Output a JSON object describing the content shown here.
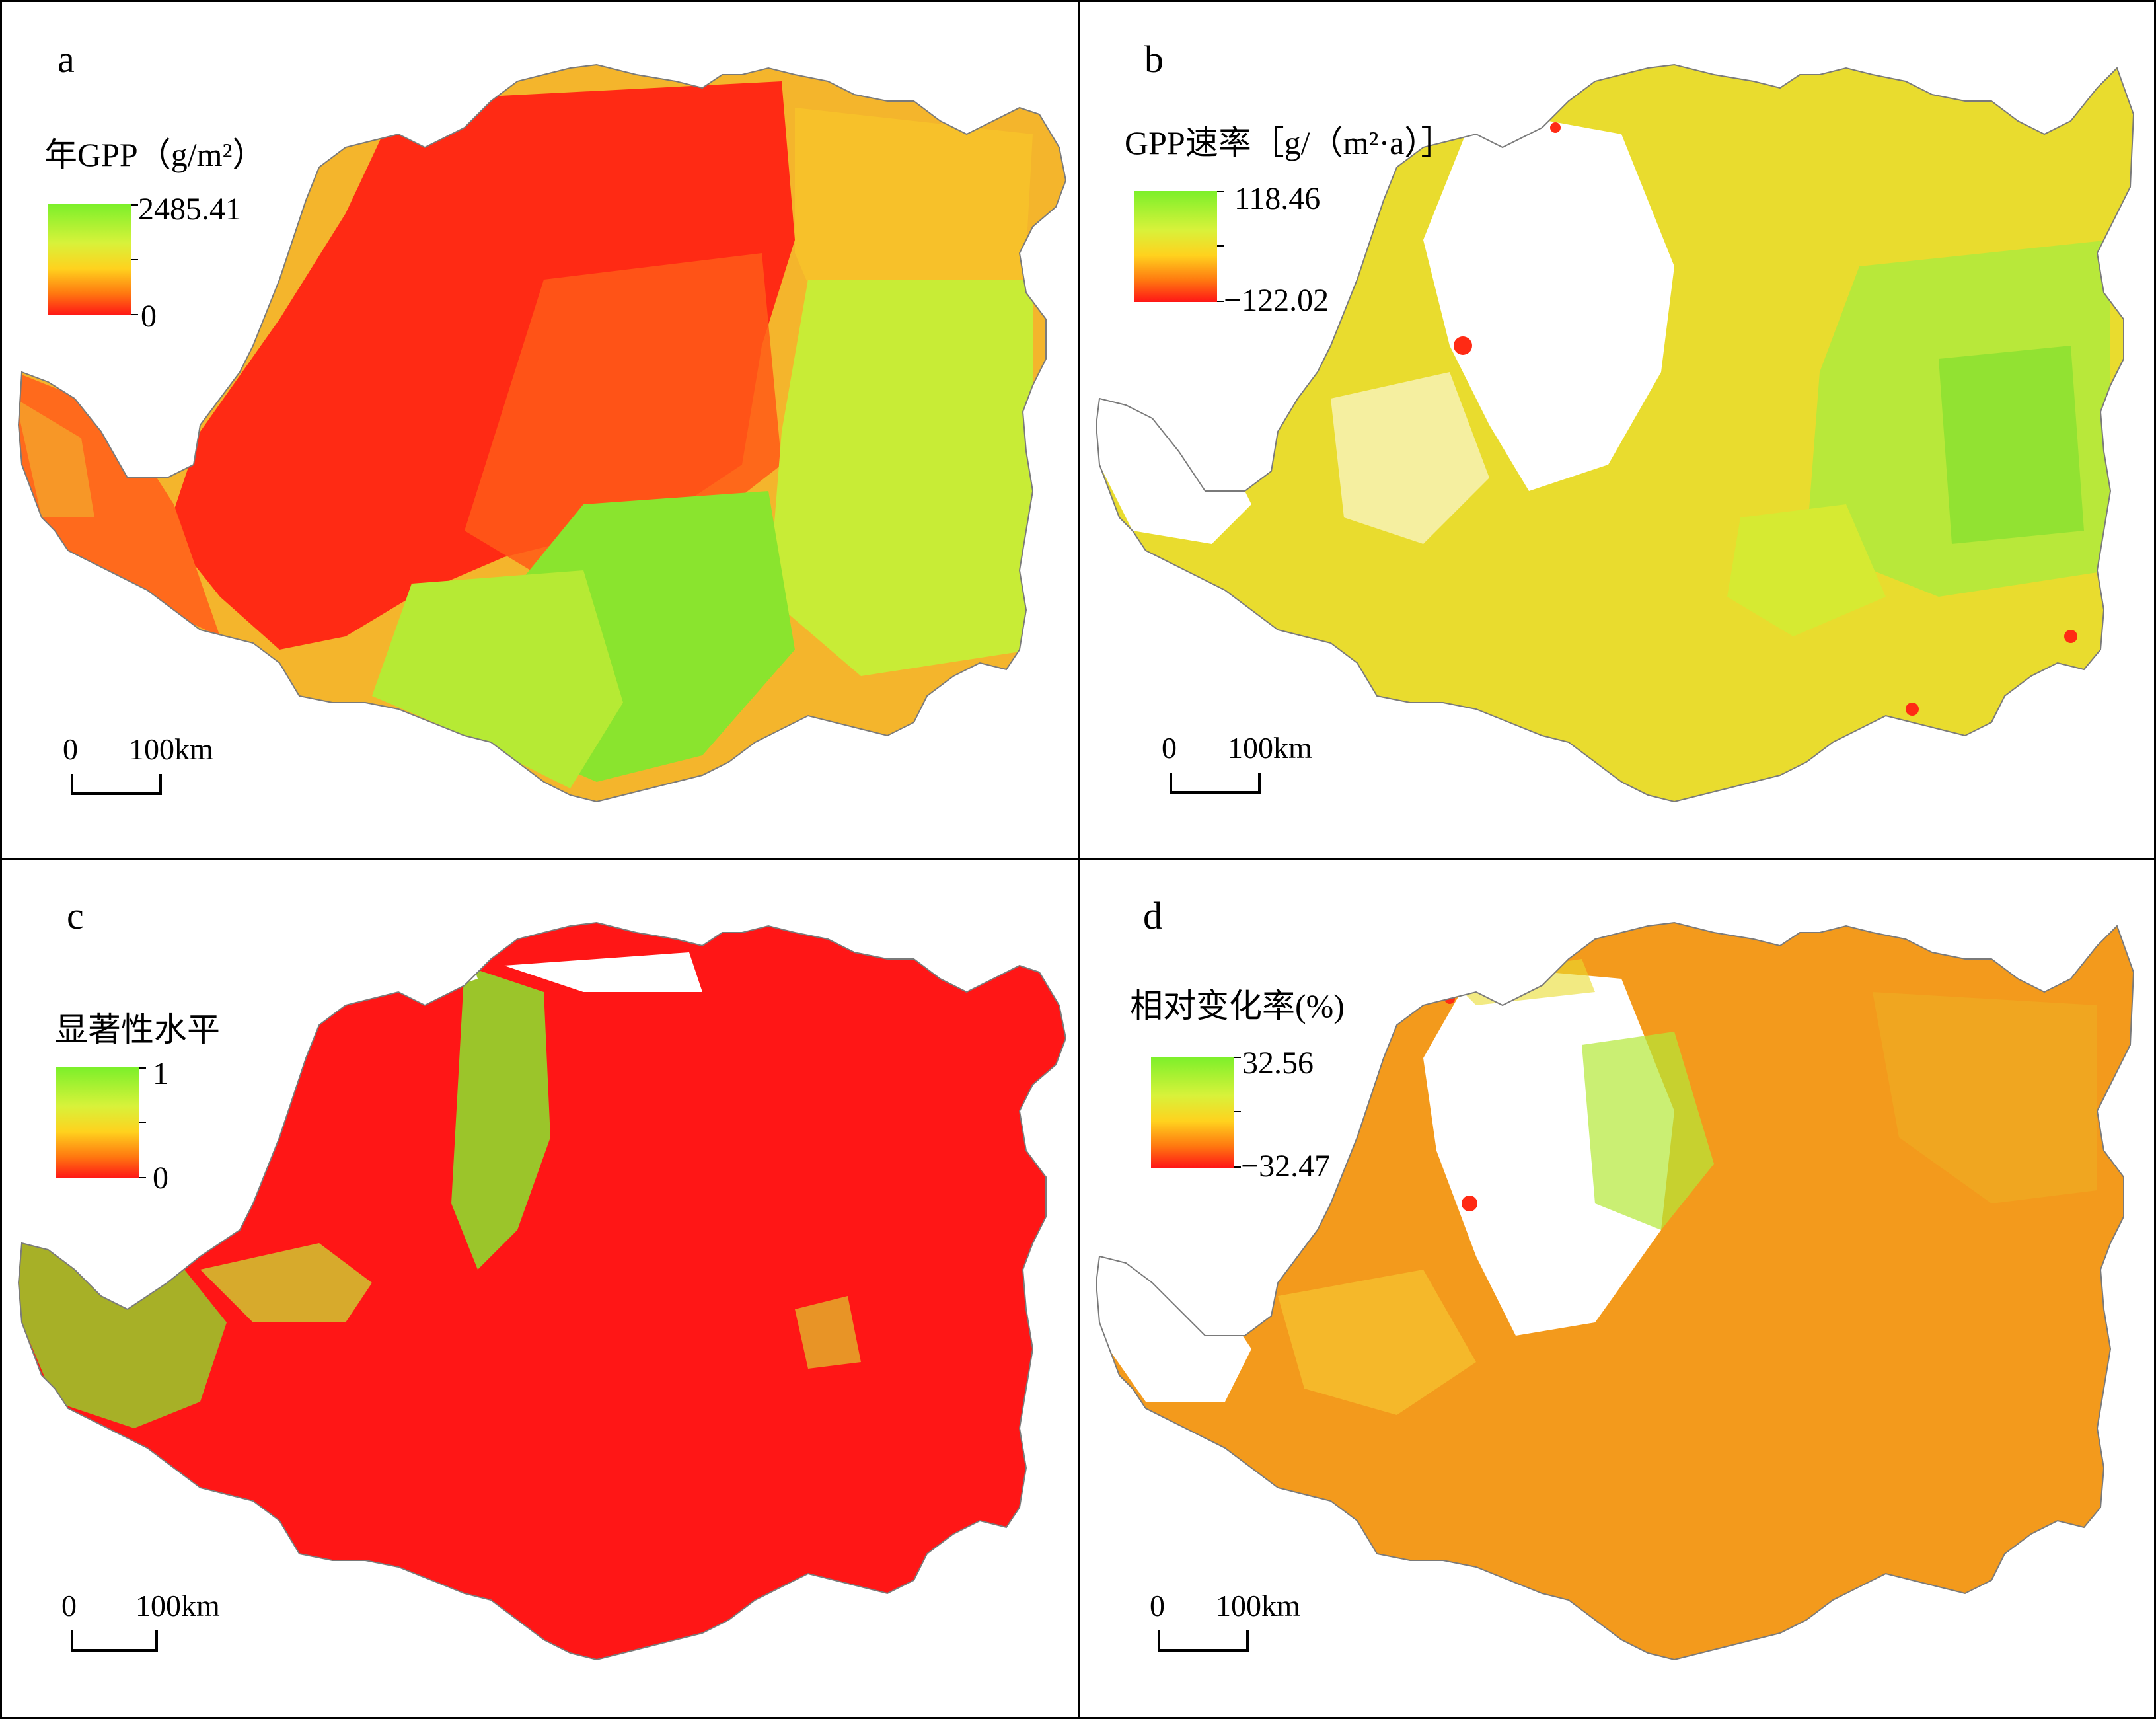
{
  "figure": {
    "panels": [
      {
        "letter": "a",
        "legend_title": "年GPP（g/m²）",
        "legend_max": "2485.41",
        "legend_min": "0",
        "scale_zero": "0",
        "scale_distance": "100km"
      },
      {
        "letter": "b",
        "legend_title": "GPP速率［g/（m²·a）］",
        "legend_max": "118.46",
        "legend_min": "−122.02",
        "scale_zero": "0",
        "scale_distance": "100km"
      },
      {
        "letter": "c",
        "legend_title": "显著性水平",
        "legend_max": "1",
        "legend_min": "0",
        "scale_zero": "0",
        "scale_distance": "100km"
      },
      {
        "letter": "d",
        "legend_title": "相对变化率(%)",
        "legend_max": "32.56",
        "legend_min": "−32.47",
        "scale_zero": "0",
        "scale_distance": "100km"
      }
    ],
    "colors": {
      "ramp_high": "#7cf02a",
      "ramp_mid": "#ffd21e",
      "ramp_low": "#ff1616",
      "orange": "#f39a1c",
      "yellow": "#e9dc2e"
    }
  }
}
